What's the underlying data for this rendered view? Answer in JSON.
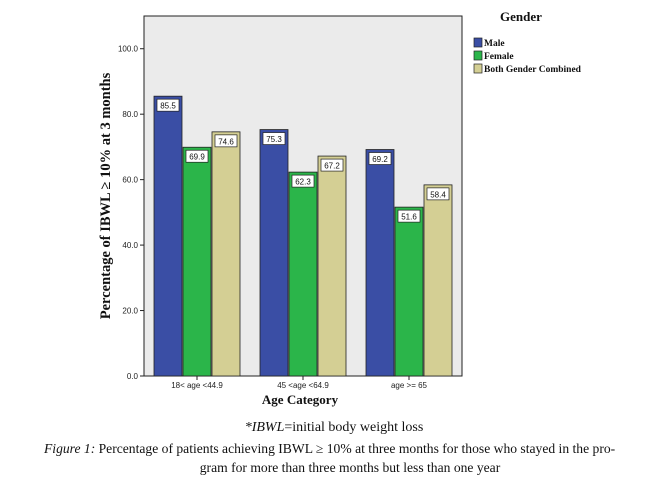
{
  "chart_data": {
    "type": "bar",
    "title": "",
    "xlabel": "Age Category",
    "ylabel": "Percentage of IBWL ≥ 10% at 3 months",
    "ylim": [
      0,
      110
    ],
    "yticks": [
      0,
      20,
      40,
      60,
      80,
      100
    ],
    "ytick_labels": [
      "0.0",
      "20.0",
      "40.0",
      "60.0",
      "80.0",
      "100.0"
    ],
    "categories": [
      "18< age <44.9",
      "45 <age <64.9",
      "age >= 65"
    ],
    "legend_title": "Gender",
    "legend_position": "top-right, outside plot",
    "series": [
      {
        "name": "Male",
        "color": "#3a4ea5",
        "values": [
          85.5,
          75.3,
          69.2
        ],
        "labels": [
          "85.5",
          "75.3",
          "69.2"
        ]
      },
      {
        "name": "Female",
        "color": "#2bb54a",
        "values": [
          69.9,
          62.3,
          51.6
        ],
        "labels": [
          "69.9",
          "62.3",
          "51.6"
        ]
      },
      {
        "name": "Both Gender Combined",
        "color": "#d4cf94",
        "values": [
          74.6,
          67.2,
          58.4
        ],
        "labels": [
          "74.6",
          "67.2",
          "58.4"
        ]
      }
    ],
    "plot_background": "#ebebeb",
    "grid": false
  },
  "footnote": {
    "term": "*IBWL",
    "definition": "=initial body weight loss"
  },
  "figure_caption": {
    "label": "Figure 1:",
    "text_line1": " Percentage of patients achieving IBWL ≥ 10% at three months for those who stayed in the pro-",
    "text_line2": "gram for more than three months but less than one year"
  }
}
